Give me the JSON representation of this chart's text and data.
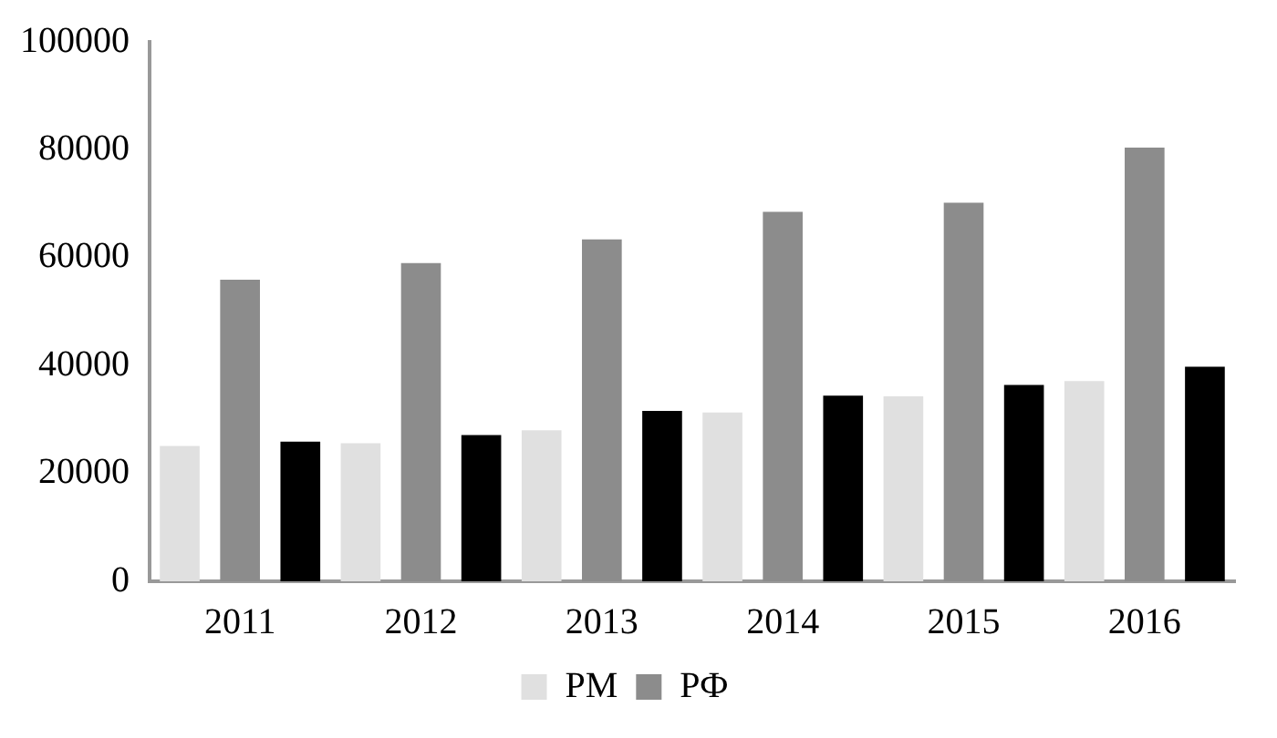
{
  "chart_data": {
    "type": "bar",
    "categories": [
      "2011",
      "2012",
      "2013",
      "2014",
      "2015",
      "2016"
    ],
    "series": [
      {
        "name": "РМ",
        "color": "#e0e0e0",
        "values": [
          25100,
          25600,
          28000,
          31300,
          34300,
          37100
        ]
      },
      {
        "name": "РФ",
        "color": "#8c8c8c",
        "values": [
          55900,
          59000,
          63400,
          68500,
          70200,
          80400
        ]
      },
      {
        "color": "#000000",
        "values": [
          25900,
          27100,
          31600,
          34400,
          36400,
          39800
        ]
      }
    ],
    "ylim": [
      0,
      100000
    ],
    "yticks": [
      0,
      20000,
      40000,
      60000,
      80000,
      100000
    ],
    "grid": false,
    "legend": "bottom"
  }
}
